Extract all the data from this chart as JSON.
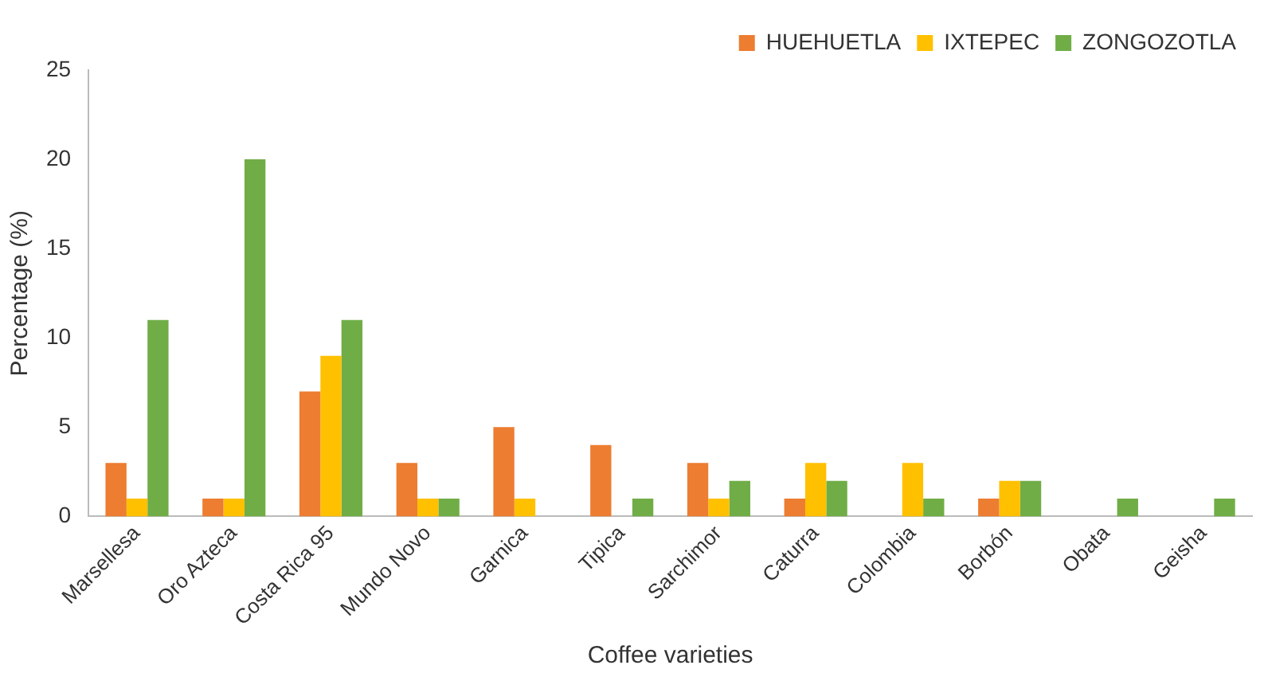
{
  "chart_data": {
    "type": "bar",
    "xlabel": "Coffee varieties",
    "ylabel": "Percentage (%)",
    "categories": [
      "Marsellesa",
      "Oro Azteca",
      "Costa Rica 95",
      "Mundo Novo",
      "Garnica",
      "Tipica",
      "Sarchimor",
      "Caturra",
      "Colombia",
      "Borbón",
      "Obata",
      "Geisha"
    ],
    "series": [
      {
        "name": "HUEHUETLA",
        "color": "#ed7d31",
        "values": [
          3,
          1,
          7,
          3,
          5,
          4,
          3,
          1,
          0,
          1,
          0,
          0
        ]
      },
      {
        "name": "IXTEPEC",
        "color": "#ffc000",
        "values": [
          1,
          1,
          9,
          1,
          1,
          0,
          1,
          3,
          3,
          2,
          0,
          0
        ]
      },
      {
        "name": "ZONGOZOTLA",
        "color": "#70ad47",
        "values": [
          11,
          20,
          11,
          1,
          0,
          1,
          2,
          2,
          1,
          2,
          1,
          1
        ]
      }
    ],
    "ylim": [
      0,
      25
    ],
    "yticks": [
      0,
      5,
      10,
      15,
      20,
      25
    ],
    "grid": false,
    "legend": "top right"
  }
}
